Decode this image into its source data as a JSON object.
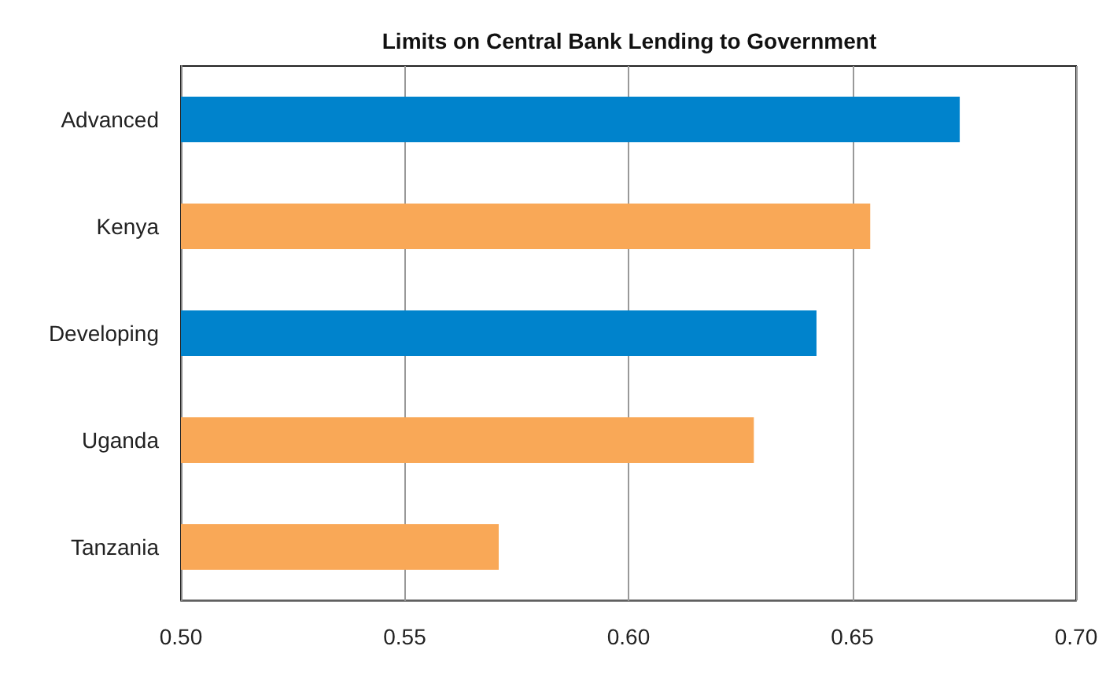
{
  "chart_data": {
    "type": "bar",
    "orientation": "horizontal",
    "title": "Limits on Central Bank Lending to Government",
    "categories": [
      "Advanced",
      "Kenya",
      "Developing",
      "Uganda",
      "Tanzania"
    ],
    "values": [
      0.674,
      0.654,
      0.642,
      0.628,
      0.571
    ],
    "colors": [
      "#0083cc",
      "#f9a857",
      "#0083cc",
      "#f9a857",
      "#f9a857"
    ],
    "xlim": [
      0.5,
      0.7
    ],
    "xticks": [
      {
        "value": 0.5,
        "label": "0.50"
      },
      {
        "value": 0.55,
        "label": "0.55"
      },
      {
        "value": 0.6,
        "label": "0.60"
      },
      {
        "value": 0.65,
        "label": "0.65"
      },
      {
        "value": 0.7,
        "label": "0.70"
      }
    ],
    "grid": "x"
  }
}
